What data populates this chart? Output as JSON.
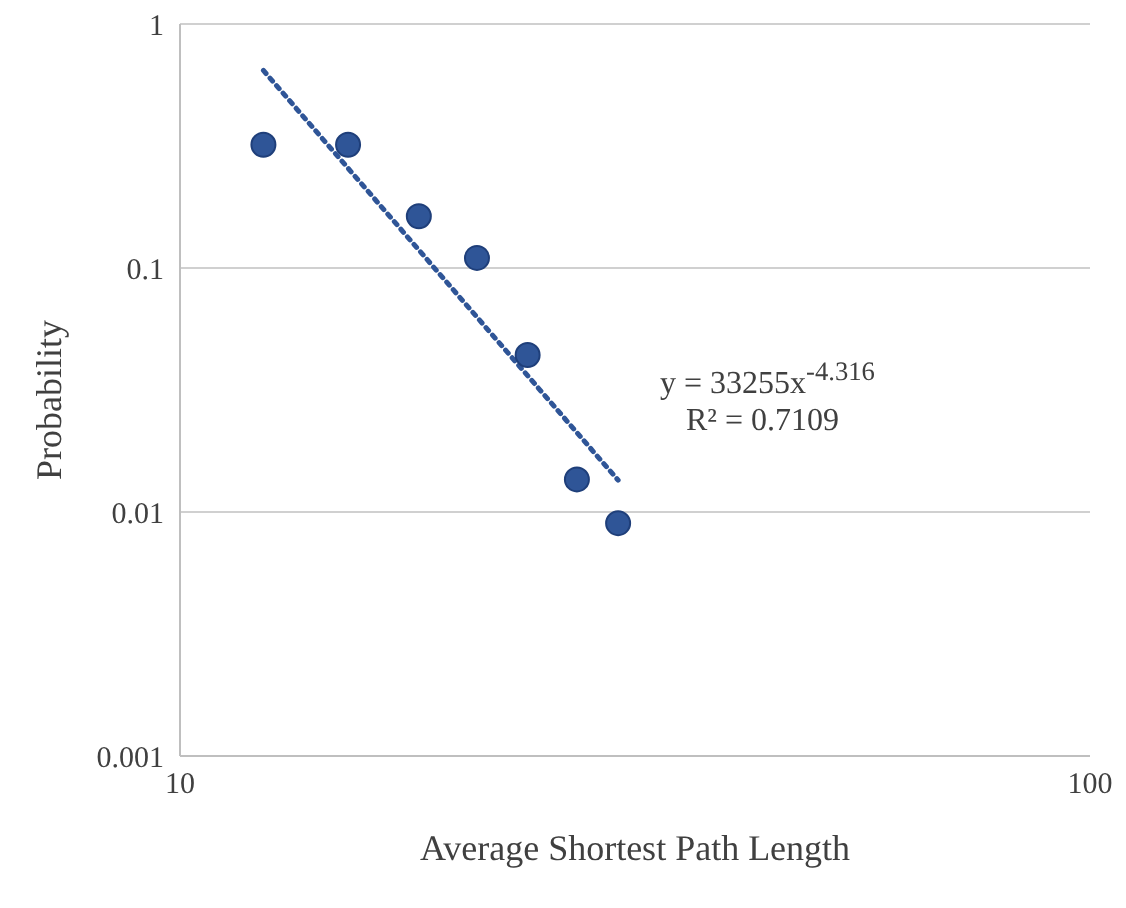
{
  "chart_data": {
    "type": "scatter",
    "xlabel": "Average  Shortest Path Length",
    "ylabel": "Probability",
    "series": [
      {
        "color": "#2f5597",
        "marker": "circle",
        "x": [
          12.35,
          15.3,
          18.3,
          21.2,
          24.1,
          27.3,
          30.3
        ],
        "values": [
          0.32,
          0.32,
          0.163,
          0.11,
          0.044,
          0.0136,
          0.009
        ]
      },
      {
        "type": "line",
        "color": "#2f5597",
        "line_style": "dotted",
        "marker": "none",
        "x": [
          12.35,
          30.3
        ],
        "values": [
          0.645,
          0.0135
        ]
      }
    ],
    "log": "xy",
    "xlim": [
      10,
      100
    ],
    "xticks": [
      10,
      100
    ],
    "ylim": [
      0.001,
      1
    ],
    "yticks": [
      0.001,
      0.01,
      0.1,
      1
    ],
    "grid": "y",
    "annotations": [
      "y = 33255x$^{-4.316}$",
      "R² = 0.7109"
    ]
  }
}
